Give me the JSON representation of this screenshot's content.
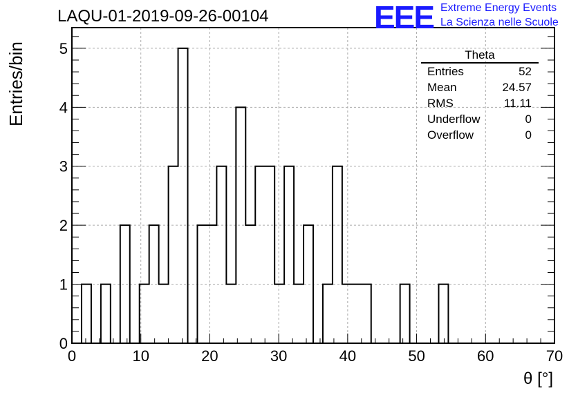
{
  "header": {
    "title": "LAQU-01-2019-09-26-00104",
    "logo_text": "EEE",
    "logo_line1": "Extreme Energy Events",
    "logo_line2": "La Scienza nelle Scuole"
  },
  "stats": {
    "title": "Theta",
    "rows": [
      {
        "label": "Entries",
        "value": "52"
      },
      {
        "label": "Mean",
        "value": "24.57"
      },
      {
        "label": "RMS",
        "value": "11.11"
      },
      {
        "label": "Underflow",
        "value": "0"
      },
      {
        "label": "Overflow",
        "value": "0"
      }
    ]
  },
  "chart_data": {
    "type": "bar",
    "title": "LAQU-01-2019-09-26-00104",
    "xlabel": "θ [°]",
    "ylabel": "Entries/bin",
    "xlim": [
      0,
      70
    ],
    "ylim": [
      0,
      5.35
    ],
    "grid": true,
    "bin_width": 1.4,
    "bin_edges_start": 0,
    "values": [
      0,
      1,
      0,
      1,
      0,
      2,
      0,
      1,
      2,
      1,
      3,
      5,
      0,
      2,
      2,
      3,
      1,
      4,
      2,
      3,
      3,
      1,
      3,
      1,
      2,
      0,
      1,
      3,
      1,
      1,
      1,
      0,
      0,
      0,
      1,
      0,
      0,
      0,
      1,
      0,
      0,
      0,
      0,
      0,
      0,
      0,
      0,
      0,
      0,
      0
    ],
    "xticks": [
      "0",
      "10",
      "20",
      "30",
      "40",
      "50",
      "60",
      "70"
    ],
    "yticks": [
      "0",
      "1",
      "2",
      "3",
      "4",
      "5"
    ],
    "color": "#000000"
  }
}
